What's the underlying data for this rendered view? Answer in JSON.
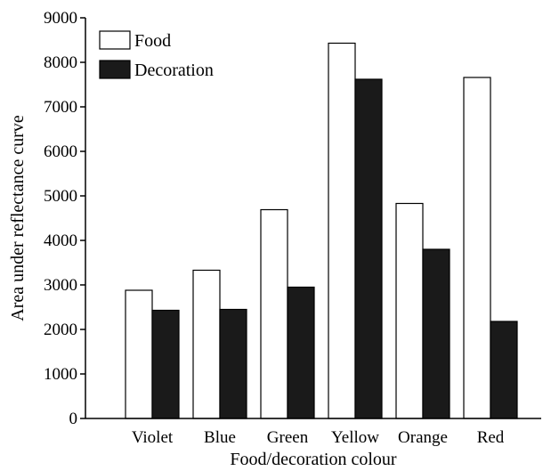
{
  "chart_data": {
    "type": "bar",
    "categories": [
      "Violet",
      "Blue",
      "Green",
      "Yellow",
      "Orange",
      "Red"
    ],
    "series": [
      {
        "name": "Food",
        "color": "#ffffff",
        "values": [
          2880,
          3330,
          4690,
          8430,
          4830,
          7660
        ]
      },
      {
        "name": "Decoration",
        "color": "#1a1a1a",
        "values": [
          2430,
          2450,
          2950,
          7620,
          3800,
          2180
        ]
      }
    ],
    "xlabel": "Food/decoration colour",
    "ylabel": "Area under reflectance curve",
    "ylim": [
      0,
      9000
    ],
    "yticks": [
      0,
      1000,
      2000,
      3000,
      4000,
      5000,
      6000,
      7000,
      8000,
      9000
    ],
    "grid": false,
    "legend": "top-left"
  }
}
